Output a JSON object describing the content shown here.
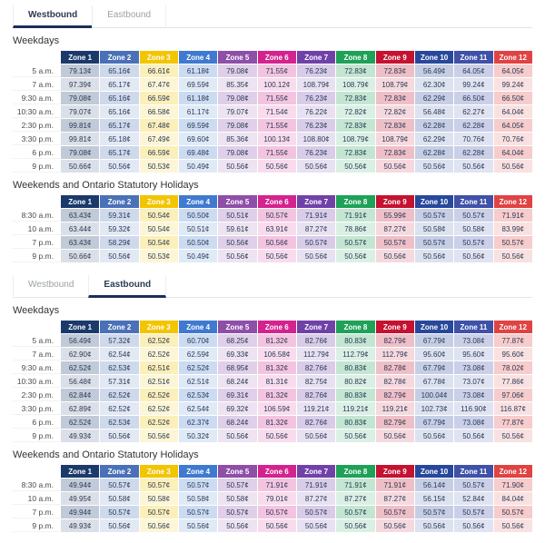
{
  "accent": {
    "active_tab_underline": "#1d2d5c",
    "active_tab_text": "#2b3a55",
    "inactive_tab_text": "#9ba1a6",
    "cell_text": "#2b3a55",
    "heading_text": "#333333"
  },
  "zones": [
    {
      "label": "Zone 1",
      "color": "#1b3a6b"
    },
    {
      "label": "Zone 2",
      "color": "#4a71b8"
    },
    {
      "label": "Zone 3",
      "color": "#f2c500"
    },
    {
      "label": "Zone 4",
      "color": "#3f7ad0"
    },
    {
      "label": "Zone 5",
      "color": "#8e4fa8"
    },
    {
      "label": "Zone 6",
      "color": "#d4238e"
    },
    {
      "label": "Zone 7",
      "color": "#7042a8"
    },
    {
      "label": "Zone 8",
      "color": "#1fa158"
    },
    {
      "label": "Zone 9",
      "color": "#c41230"
    },
    {
      "label": "Zone 10",
      "color": "#27489b"
    },
    {
      "label": "Zone 11",
      "color": "#3f51a8"
    },
    {
      "label": "Zone 12",
      "color": "#e04343"
    }
  ],
  "sections": [
    {
      "id": "westbound",
      "tabs": [
        {
          "label": "Westbound",
          "active": true
        },
        {
          "label": "Eastbound",
          "active": false
        }
      ],
      "tables": [
        {
          "heading": "Weekdays",
          "rows": [
            {
              "time": "5 a.m.",
              "values": [
                "79.13¢",
                "65.16¢",
                "66.61¢",
                "61.18¢",
                "79.08¢",
                "71.55¢",
                "76.23¢",
                "72.83¢",
                "72.83¢",
                "56.49¢",
                "64.05¢",
                "64.05¢"
              ]
            },
            {
              "time": "7 a.m.",
              "values": [
                "97.39¢",
                "65.17¢",
                "67.47¢",
                "69.59¢",
                "85.35¢",
                "100.12¢",
                "108.79¢",
                "108.79¢",
                "108.79¢",
                "62.30¢",
                "99.24¢",
                "99.24¢"
              ]
            },
            {
              "time": "9:30 a.m.",
              "values": [
                "79.08¢",
                "65.16¢",
                "66.59¢",
                "61.18¢",
                "79.08¢",
                "71.55¢",
                "76.23¢",
                "72.83¢",
                "72.83¢",
                "62.29¢",
                "66.50¢",
                "66.50¢"
              ]
            },
            {
              "time": "10:30 a.m.",
              "values": [
                "79.07¢",
                "65.16¢",
                "66.58¢",
                "61.17¢",
                "79.07¢",
                "71.54¢",
                "76.22¢",
                "72.82¢",
                "72.82¢",
                "56.48¢",
                "62.27¢",
                "64.04¢"
              ]
            },
            {
              "time": "2:30 p.m.",
              "values": [
                "99.81¢",
                "65.17¢",
                "67.48¢",
                "69.59¢",
                "79.08¢",
                "71.55¢",
                "76.23¢",
                "72.83¢",
                "72.83¢",
                "62.28¢",
                "62.28¢",
                "64.05¢"
              ]
            },
            {
              "time": "3:30 p.m.",
              "values": [
                "99.81¢",
                "65.18¢",
                "67.49¢",
                "69.60¢",
                "85.36¢",
                "100.13¢",
                "108.80¢",
                "108.79¢",
                "108.79¢",
                "62.29¢",
                "70.76¢",
                "70.76¢"
              ]
            },
            {
              "time": "6 p.m.",
              "values": [
                "79.08¢",
                "65.17¢",
                "66.59¢",
                "69.48¢",
                "79.08¢",
                "71.55¢",
                "76.23¢",
                "72.83¢",
                "72.83¢",
                "62.28¢",
                "62.28¢",
                "64.04¢"
              ]
            },
            {
              "time": "9 p.m.",
              "values": [
                "50.66¢",
                "50.56¢",
                "50.53¢",
                "50.49¢",
                "50.56¢",
                "50.56¢",
                "50.56¢",
                "50.56¢",
                "50.56¢",
                "50.56¢",
                "50.56¢",
                "50.56¢"
              ]
            }
          ]
        },
        {
          "heading": "Weekends and Ontario Statutory Holidays",
          "rows": [
            {
              "time": "8:30 a.m.",
              "values": [
                "63.43¢",
                "59.31¢",
                "50.54¢",
                "50.50¢",
                "50.51¢",
                "50.57¢",
                "71.91¢",
                "71.91¢",
                "55.99¢",
                "50.57¢",
                "50.57¢",
                "71.91¢"
              ]
            },
            {
              "time": "10 a.m.",
              "values": [
                "63.44¢",
                "59.32¢",
                "50.54¢",
                "50.51¢",
                "59.61¢",
                "63.91¢",
                "87.27¢",
                "78.86¢",
                "87.27¢",
                "50.58¢",
                "50.58¢",
                "83.99¢"
              ]
            },
            {
              "time": "7 p.m.",
              "values": [
                "63.43¢",
                "58.29¢",
                "50.54¢",
                "50.50¢",
                "50.56¢",
                "50.56¢",
                "50.57¢",
                "50.57¢",
                "50.57¢",
                "50.57¢",
                "50.57¢",
                "50.57¢"
              ]
            },
            {
              "time": "9 p.m.",
              "values": [
                "50.66¢",
                "50.56¢",
                "50.53¢",
                "50.49¢",
                "50.56¢",
                "50.56¢",
                "50.56¢",
                "50.56¢",
                "50.56¢",
                "50.56¢",
                "50.56¢",
                "50.56¢"
              ]
            }
          ]
        }
      ]
    },
    {
      "id": "eastbound",
      "tabs": [
        {
          "label": "Westbound",
          "active": false
        },
        {
          "label": "Eastbound",
          "active": true
        }
      ],
      "tables": [
        {
          "heading": "Weekdays",
          "rows": [
            {
              "time": "5 a.m.",
              "values": [
                "56.49¢",
                "57.32¢",
                "62.52¢",
                "60.70¢",
                "68.25¢",
                "81.32¢",
                "82.76¢",
                "80.83¢",
                "82.79¢",
                "67.79¢",
                "73.08¢",
                "77.87¢"
              ]
            },
            {
              "time": "7 a.m.",
              "values": [
                "62.90¢",
                "62.54¢",
                "62.52¢",
                "62.59¢",
                "69.33¢",
                "106.58¢",
                "112.79¢",
                "112.79¢",
                "112.79¢",
                "95.60¢",
                "95.60¢",
                "95.60¢"
              ]
            },
            {
              "time": "9:30 a.m.",
              "values": [
                "62.52¢",
                "62.53¢",
                "62.51¢",
                "62.52¢",
                "68.95¢",
                "81.32¢",
                "82.76¢",
                "80.83¢",
                "82.78¢",
                "67.79¢",
                "73.08¢",
                "78.02¢"
              ]
            },
            {
              "time": "10:30 a.m.",
              "values": [
                "56.48¢",
                "57.31¢",
                "62.51¢",
                "62.51¢",
                "68.24¢",
                "81.31¢",
                "82.75¢",
                "80.82¢",
                "82.78¢",
                "67.78¢",
                "73.07¢",
                "77.86¢"
              ]
            },
            {
              "time": "2:30 p.m.",
              "values": [
                "62.84¢",
                "62.52¢",
                "62.52¢",
                "62.53¢",
                "69.31¢",
                "81.32¢",
                "82.76¢",
                "80.83¢",
                "82.79¢",
                "100.04¢",
                "73.08¢",
                "97.06¢"
              ]
            },
            {
              "time": "3:30 p.m.",
              "values": [
                "62.89¢",
                "62.52¢",
                "62.52¢",
                "62.54¢",
                "69.32¢",
                "106.59¢",
                "119.21¢",
                "119.21¢",
                "119.21¢",
                "102.73¢",
                "116.90¢",
                "116.87¢"
              ]
            },
            {
              "time": "6 p.m.",
              "values": [
                "62.52¢",
                "62.53¢",
                "62.52¢",
                "62.37¢",
                "68.24¢",
                "81.32¢",
                "82.76¢",
                "80.83¢",
                "82.79¢",
                "67.79¢",
                "73.08¢",
                "77.87¢"
              ]
            },
            {
              "time": "9 p.m.",
              "values": [
                "49.93¢",
                "50.56¢",
                "50.56¢",
                "50.32¢",
                "50.56¢",
                "50.56¢",
                "50.56¢",
                "50.56¢",
                "50.56¢",
                "50.56¢",
                "50.56¢",
                "50.56¢"
              ]
            }
          ]
        },
        {
          "heading": "Weekends and Ontario Statutory Holidays",
          "rows": [
            {
              "time": "8:30 a.m.",
              "values": [
                "49.94¢",
                "50.57¢",
                "50.57¢",
                "50.57¢",
                "50.57¢",
                "71.91¢",
                "71.91¢",
                "71.91¢",
                "71.91¢",
                "56.14¢",
                "50.57¢",
                "71.90¢"
              ]
            },
            {
              "time": "10 a.m.",
              "values": [
                "49.95¢",
                "50.58¢",
                "50.58¢",
                "50.58¢",
                "50.58¢",
                "79.01¢",
                "87.27¢",
                "87.27¢",
                "87.27¢",
                "56.15¢",
                "52.84¢",
                "84.04¢"
              ]
            },
            {
              "time": "7 p.m.",
              "values": [
                "49.94¢",
                "50.57¢",
                "50.57¢",
                "50.57¢",
                "50.57¢",
                "50.57¢",
                "50.57¢",
                "50.57¢",
                "50.57¢",
                "50.57¢",
                "50.57¢",
                "50.57¢"
              ]
            },
            {
              "time": "9 p.m.",
              "values": [
                "49.93¢",
                "50.56¢",
                "50.56¢",
                "50.56¢",
                "50.56¢",
                "50.56¢",
                "50.56¢",
                "50.56¢",
                "50.56¢",
                "50.56¢",
                "50.56¢",
                "50.56¢"
              ]
            }
          ]
        }
      ]
    }
  ]
}
